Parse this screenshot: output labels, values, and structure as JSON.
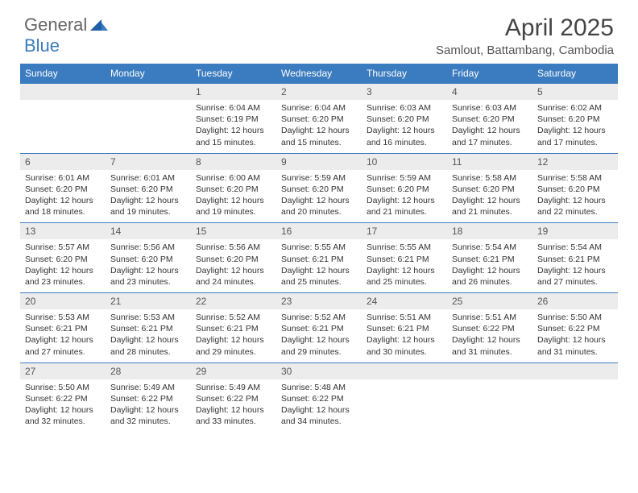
{
  "logo": {
    "text1": "General",
    "text2": "Blue"
  },
  "title": "April 2025",
  "location": "Samlout, Battambang, Cambodia",
  "colors": {
    "header_bg": "#3b7bbf",
    "header_text": "#ffffff",
    "daynum_bg": "#ececec",
    "border": "#3b7bbf",
    "body_text": "#333333"
  },
  "weekdays": [
    "Sunday",
    "Monday",
    "Tuesday",
    "Wednesday",
    "Thursday",
    "Friday",
    "Saturday"
  ],
  "weeks": [
    [
      null,
      null,
      {
        "num": "1",
        "sunrise": "6:04 AM",
        "sunset": "6:19 PM",
        "daylight": "12 hours and 15 minutes."
      },
      {
        "num": "2",
        "sunrise": "6:04 AM",
        "sunset": "6:20 PM",
        "daylight": "12 hours and 15 minutes."
      },
      {
        "num": "3",
        "sunrise": "6:03 AM",
        "sunset": "6:20 PM",
        "daylight": "12 hours and 16 minutes."
      },
      {
        "num": "4",
        "sunrise": "6:03 AM",
        "sunset": "6:20 PM",
        "daylight": "12 hours and 17 minutes."
      },
      {
        "num": "5",
        "sunrise": "6:02 AM",
        "sunset": "6:20 PM",
        "daylight": "12 hours and 17 minutes."
      }
    ],
    [
      {
        "num": "6",
        "sunrise": "6:01 AM",
        "sunset": "6:20 PM",
        "daylight": "12 hours and 18 minutes."
      },
      {
        "num": "7",
        "sunrise": "6:01 AM",
        "sunset": "6:20 PM",
        "daylight": "12 hours and 19 minutes."
      },
      {
        "num": "8",
        "sunrise": "6:00 AM",
        "sunset": "6:20 PM",
        "daylight": "12 hours and 19 minutes."
      },
      {
        "num": "9",
        "sunrise": "5:59 AM",
        "sunset": "6:20 PM",
        "daylight": "12 hours and 20 minutes."
      },
      {
        "num": "10",
        "sunrise": "5:59 AM",
        "sunset": "6:20 PM",
        "daylight": "12 hours and 21 minutes."
      },
      {
        "num": "11",
        "sunrise": "5:58 AM",
        "sunset": "6:20 PM",
        "daylight": "12 hours and 21 minutes."
      },
      {
        "num": "12",
        "sunrise": "5:58 AM",
        "sunset": "6:20 PM",
        "daylight": "12 hours and 22 minutes."
      }
    ],
    [
      {
        "num": "13",
        "sunrise": "5:57 AM",
        "sunset": "6:20 PM",
        "daylight": "12 hours and 23 minutes."
      },
      {
        "num": "14",
        "sunrise": "5:56 AM",
        "sunset": "6:20 PM",
        "daylight": "12 hours and 23 minutes."
      },
      {
        "num": "15",
        "sunrise": "5:56 AM",
        "sunset": "6:20 PM",
        "daylight": "12 hours and 24 minutes."
      },
      {
        "num": "16",
        "sunrise": "5:55 AM",
        "sunset": "6:21 PM",
        "daylight": "12 hours and 25 minutes."
      },
      {
        "num": "17",
        "sunrise": "5:55 AM",
        "sunset": "6:21 PM",
        "daylight": "12 hours and 25 minutes."
      },
      {
        "num": "18",
        "sunrise": "5:54 AM",
        "sunset": "6:21 PM",
        "daylight": "12 hours and 26 minutes."
      },
      {
        "num": "19",
        "sunrise": "5:54 AM",
        "sunset": "6:21 PM",
        "daylight": "12 hours and 27 minutes."
      }
    ],
    [
      {
        "num": "20",
        "sunrise": "5:53 AM",
        "sunset": "6:21 PM",
        "daylight": "12 hours and 27 minutes."
      },
      {
        "num": "21",
        "sunrise": "5:53 AM",
        "sunset": "6:21 PM",
        "daylight": "12 hours and 28 minutes."
      },
      {
        "num": "22",
        "sunrise": "5:52 AM",
        "sunset": "6:21 PM",
        "daylight": "12 hours and 29 minutes."
      },
      {
        "num": "23",
        "sunrise": "5:52 AM",
        "sunset": "6:21 PM",
        "daylight": "12 hours and 29 minutes."
      },
      {
        "num": "24",
        "sunrise": "5:51 AM",
        "sunset": "6:21 PM",
        "daylight": "12 hours and 30 minutes."
      },
      {
        "num": "25",
        "sunrise": "5:51 AM",
        "sunset": "6:22 PM",
        "daylight": "12 hours and 31 minutes."
      },
      {
        "num": "26",
        "sunrise": "5:50 AM",
        "sunset": "6:22 PM",
        "daylight": "12 hours and 31 minutes."
      }
    ],
    [
      {
        "num": "27",
        "sunrise": "5:50 AM",
        "sunset": "6:22 PM",
        "daylight": "12 hours and 32 minutes."
      },
      {
        "num": "28",
        "sunrise": "5:49 AM",
        "sunset": "6:22 PM",
        "daylight": "12 hours and 32 minutes."
      },
      {
        "num": "29",
        "sunrise": "5:49 AM",
        "sunset": "6:22 PM",
        "daylight": "12 hours and 33 minutes."
      },
      {
        "num": "30",
        "sunrise": "5:48 AM",
        "sunset": "6:22 PM",
        "daylight": "12 hours and 34 minutes."
      },
      null,
      null,
      null
    ]
  ],
  "labels": {
    "sunrise": "Sunrise:",
    "sunset": "Sunset:",
    "daylight": "Daylight:"
  }
}
